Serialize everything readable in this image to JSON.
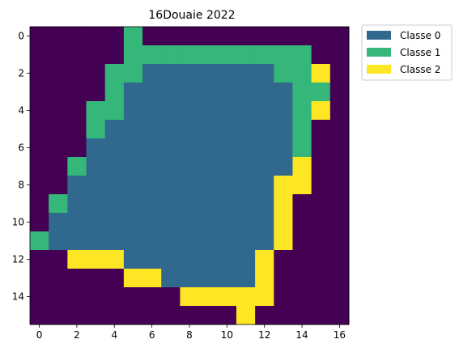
{
  "chart_data": {
    "type": "heatmap",
    "title": "16Douaie 2022",
    "xlabel": "",
    "ylabel": "",
    "xlim": [
      -0.5,
      16.5
    ],
    "ylim": [
      15.5,
      -0.5
    ],
    "xticks": [
      0,
      2,
      4,
      6,
      8,
      10,
      12,
      14,
      16
    ],
    "yticks": [
      0,
      2,
      4,
      6,
      8,
      10,
      12,
      14
    ],
    "grid": false,
    "legend": {
      "placement": "outside-top-right",
      "entries": [
        {
          "label": "Classe 0",
          "value": 1,
          "color": "#31688e"
        },
        {
          "label": "Classe 1",
          "value": 2,
          "color": "#35b779"
        },
        {
          "label": "Classe 2",
          "value": 3,
          "color": "#fde725"
        }
      ]
    },
    "background": {
      "value": 0,
      "color": "#440154"
    },
    "grid_values": [
      [
        0,
        0,
        0,
        0,
        0,
        2,
        0,
        0,
        0,
        0,
        0,
        0,
        0,
        0,
        0,
        0,
        0
      ],
      [
        0,
        0,
        0,
        0,
        0,
        2,
        2,
        2,
        2,
        2,
        2,
        2,
        2,
        2,
        2,
        0,
        0
      ],
      [
        0,
        0,
        0,
        0,
        2,
        2,
        1,
        1,
        1,
        1,
        1,
        1,
        1,
        2,
        2,
        3,
        0
      ],
      [
        0,
        0,
        0,
        0,
        2,
        1,
        1,
        1,
        1,
        1,
        1,
        1,
        1,
        1,
        2,
        2,
        0
      ],
      [
        0,
        0,
        0,
        2,
        2,
        1,
        1,
        1,
        1,
        1,
        1,
        1,
        1,
        1,
        2,
        3,
        0
      ],
      [
        0,
        0,
        0,
        2,
        1,
        1,
        1,
        1,
        1,
        1,
        1,
        1,
        1,
        1,
        2,
        0,
        0
      ],
      [
        0,
        0,
        0,
        1,
        1,
        1,
        1,
        1,
        1,
        1,
        1,
        1,
        1,
        1,
        2,
        0,
        0
      ],
      [
        0,
        0,
        2,
        1,
        1,
        1,
        1,
        1,
        1,
        1,
        1,
        1,
        1,
        1,
        3,
        0,
        0
      ],
      [
        0,
        0,
        1,
        1,
        1,
        1,
        1,
        1,
        1,
        1,
        1,
        1,
        1,
        3,
        3,
        0,
        0
      ],
      [
        0,
        2,
        1,
        1,
        1,
        1,
        1,
        1,
        1,
        1,
        1,
        1,
        1,
        3,
        0,
        0,
        0
      ],
      [
        0,
        1,
        1,
        1,
        1,
        1,
        1,
        1,
        1,
        1,
        1,
        1,
        1,
        3,
        0,
        0,
        0
      ],
      [
        2,
        1,
        1,
        1,
        1,
        1,
        1,
        1,
        1,
        1,
        1,
        1,
        1,
        3,
        0,
        0,
        0
      ],
      [
        0,
        0,
        3,
        3,
        3,
        1,
        1,
        1,
        1,
        1,
        1,
        1,
        3,
        0,
        0,
        0,
        0
      ],
      [
        0,
        0,
        0,
        0,
        0,
        3,
        3,
        1,
        1,
        1,
        1,
        1,
        3,
        0,
        0,
        0,
        0
      ],
      [
        0,
        0,
        0,
        0,
        0,
        0,
        0,
        0,
        3,
        3,
        3,
        3,
        3,
        0,
        0,
        0,
        0
      ],
      [
        0,
        0,
        0,
        0,
        0,
        0,
        0,
        0,
        0,
        0,
        0,
        3,
        0,
        0,
        0,
        0,
        0
      ]
    ]
  }
}
